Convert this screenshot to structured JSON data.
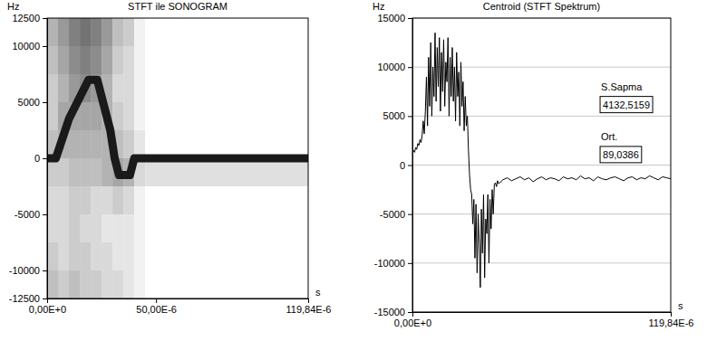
{
  "chart_data": [
    {
      "type": "heatmap",
      "title": "STFT ile SONOGRAM",
      "ylabel": "Hz",
      "xlabel": "s",
      "xlim": [
        0,
        0.00011984
      ],
      "ylim": [
        -12500,
        12500
      ],
      "xticks": [
        {
          "value": 0,
          "label": "0,00E+0"
        },
        {
          "value": 5e-05,
          "label": "50,00E-6"
        },
        {
          "value": 0.00011984,
          "label": "119,84E-6"
        }
      ],
      "yticks": [
        12500,
        10000,
        5000,
        0,
        -5000,
        -10000,
        -12500
      ],
      "cell_x": [
        0,
        5e-06,
        1e-05,
        1.5e-05,
        2e-05,
        2.5e-05,
        3e-05,
        3.5e-05,
        4e-05,
        4.5e-05,
        0.00011984
      ],
      "cell_y": [
        -12500,
        -10000,
        -7500,
        -5000,
        -2500,
        0,
        2500,
        5000,
        7500,
        10000,
        12500
      ],
      "cells": [
        [
          0.25,
          0.2,
          0.25,
          0.2,
          0.2,
          0.15,
          0.15,
          0.1,
          0.05,
          0
        ],
        [
          0.2,
          0.15,
          0.2,
          0.2,
          0.15,
          0.15,
          0.1,
          0.1,
          0.05,
          0
        ],
        [
          0.15,
          0.15,
          0.2,
          0.15,
          0.15,
          0.1,
          0.1,
          0.1,
          0.05,
          0
        ],
        [
          0.15,
          0.15,
          0.2,
          0.2,
          0.15,
          0.15,
          0.2,
          0.15,
          0.05,
          0
        ],
        [
          0.2,
          0.2,
          0.25,
          0.25,
          0.25,
          0.3,
          0.35,
          0.3,
          0.15,
          0.12
        ],
        [
          0.25,
          0.3,
          0.3,
          0.3,
          0.3,
          0.3,
          0.25,
          0.2,
          0.1,
          0
        ],
        [
          0.2,
          0.35,
          0.35,
          0.35,
          0.35,
          0.3,
          0.2,
          0.15,
          0.05,
          0
        ],
        [
          0.2,
          0.3,
          0.4,
          0.45,
          0.4,
          0.3,
          0.15,
          0.15,
          0.05,
          0
        ],
        [
          0.25,
          0.35,
          0.45,
          0.5,
          0.45,
          0.35,
          0.2,
          0.15,
          0.05,
          0
        ],
        [
          0.3,
          0.4,
          0.5,
          0.55,
          0.5,
          0.4,
          0.25,
          0.2,
          0.05,
          0
        ]
      ],
      "clim": [
        0,
        1
      ],
      "series": [
        {
          "type": "line",
          "color": "#1a1a1a",
          "x": [
            0,
            4e-06,
            1e-05,
            1.9e-05,
            2.3e-05,
            2.9e-05,
            3.1e-05,
            3.3e-05,
            3.8e-05,
            4e-05,
            0.00011984
          ],
          "values": [
            0,
            0,
            3500,
            7000,
            7000,
            2500,
            0,
            -1500,
            -1500,
            0,
            0
          ]
        }
      ]
    },
    {
      "type": "line",
      "title": "Centroid (STFT Spektrum)",
      "ylabel": "Hz",
      "xlabel": "s",
      "xlim": [
        0,
        0.00011984
      ],
      "ylim": [
        -15000,
        15000
      ],
      "xticks": [
        {
          "value": 0,
          "label": "0,00E+0"
        },
        {
          "value": 0.00011984,
          "label": "119,84E-6"
        }
      ],
      "yticks": [
        15000,
        10000,
        5000,
        0,
        -5000,
        -10000,
        -15000
      ],
      "grid": true,
      "x": [
        0,
        5e-07,
        1e-06,
        1.5e-06,
        2e-06,
        2.5e-06,
        3e-06,
        3.5e-06,
        4e-06,
        4.5e-06,
        5e-06,
        5.5e-06,
        6e-06,
        6.5e-06,
        7e-06,
        7.5e-06,
        8e-06,
        8.5e-06,
        9e-06,
        9.5e-06,
        1e-05,
        1.05e-05,
        1.1e-05,
        1.15e-05,
        1.2e-05,
        1.25e-05,
        1.3e-05,
        1.35e-05,
        1.4e-05,
        1.45e-05,
        1.5e-05,
        1.55e-05,
        1.6e-05,
        1.65e-05,
        1.7e-05,
        1.75e-05,
        1.8e-05,
        1.85e-05,
        1.9e-05,
        1.95e-05,
        2e-05,
        2.05e-05,
        2.1e-05,
        2.15e-05,
        2.2e-05,
        2.25e-05,
        2.3e-05,
        2.35e-05,
        2.4e-05,
        2.45e-05,
        2.5e-05,
        2.55e-05,
        2.6e-05,
        2.65e-05,
        2.7e-05,
        2.75e-05,
        2.8e-05,
        2.85e-05,
        2.9e-05,
        2.95e-05,
        3e-05,
        3.05e-05,
        3.1e-05,
        3.15e-05,
        3.2e-05,
        3.25e-05,
        3.3e-05,
        3.35e-05,
        3.4e-05,
        3.45e-05,
        3.5e-05,
        3.55e-05,
        3.6e-05,
        3.65e-05,
        3.7e-05,
        3.75e-05,
        3.8e-05,
        3.85e-05,
        3.9e-05,
        3.95e-05,
        4e-05,
        4.2e-05,
        4.4e-05,
        4.6e-05,
        4.8e-05,
        5e-05,
        5.2e-05,
        5.4e-05,
        5.6e-05,
        5.8e-05,
        6e-05,
        6.2e-05,
        6.4e-05,
        6.6e-05,
        6.8e-05,
        7e-05,
        7.2e-05,
        7.4e-05,
        7.6e-05,
        7.8e-05,
        8e-05,
        8.2e-05,
        8.4e-05,
        8.6e-05,
        8.8e-05,
        9e-05,
        9.2e-05,
        9.4e-05,
        9.6e-05,
        9.8e-05,
        0.0001,
        0.000102,
        0.000104,
        0.000106,
        0.000108,
        0.00011,
        0.000112,
        0.000114,
        0.000116,
        0.000118,
        0.00011984
      ],
      "series": [
        {
          "color": "#000000",
          "values": [
            1200,
            1500,
            1300,
            1800,
            1600,
            2200,
            2000,
            2600,
            2300,
            3000,
            4500,
            3200,
            5500,
            9000,
            4000,
            11000,
            6000,
            12500,
            5000,
            10000,
            7000,
            13500,
            6500,
            12000,
            8000,
            13000,
            5500,
            11500,
            7500,
            12800,
            6000,
            10500,
            8500,
            13000,
            5000,
            11000,
            7000,
            12000,
            6500,
            10000,
            4500,
            11500,
            7000,
            9500,
            4000,
            10500,
            6000,
            8500,
            3500,
            7000,
            4000,
            5000,
            1500,
            -1000,
            -2500,
            -3000,
            -6000,
            -3500,
            -9500,
            -4000,
            -11000,
            -5000,
            -8000,
            -12500,
            -4500,
            -9000,
            -3000,
            -11500,
            -5500,
            -7000,
            -3000,
            -10000,
            -3500,
            -6500,
            -2500,
            -5000,
            -2000,
            -1800,
            -2200,
            -1600,
            -1900,
            -1500,
            -1300,
            -1600,
            -1400,
            -1200,
            -1500,
            -1300,
            -1700,
            -1400,
            -1200,
            -1500,
            -1300,
            -1400,
            -1600,
            -1200,
            -1400,
            -1300,
            -1500,
            -1100,
            -1400,
            -1300,
            -1600,
            -1200,
            -1400,
            -1500,
            -1300,
            -1200,
            -1400,
            -1600,
            -1300,
            -1200,
            -1500,
            -1300,
            -1400,
            -1100,
            -1300,
            -1500,
            -1200,
            -1300,
            -1400
          ]
        }
      ],
      "stats": [
        {
          "name": "S.Sapma",
          "value": 4132.5159,
          "label": "4132,5159"
        },
        {
          "name": "Ort.",
          "value": 89.0386,
          "label": "89,0386"
        }
      ]
    }
  ]
}
